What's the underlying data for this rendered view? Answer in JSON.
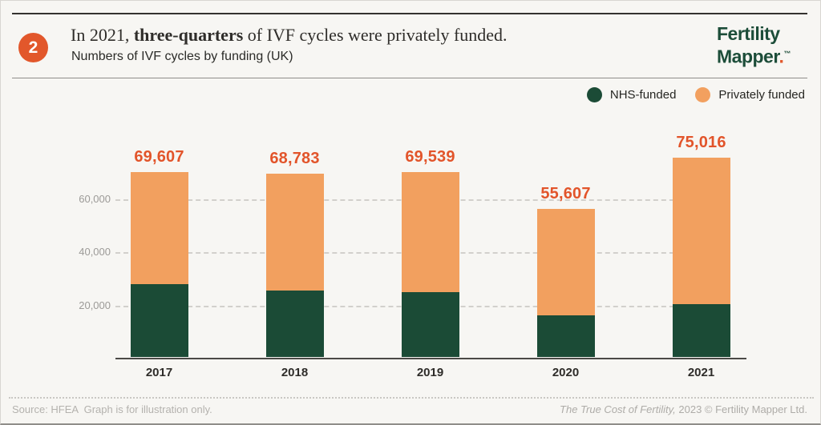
{
  "page": {
    "badge": "2",
    "title_prefix": "In 2021, ",
    "title_bold": "three-quarters",
    "title_suffix": " of IVF cycles were privately funded.",
    "subtitle": "Numbers of IVF cycles by funding (UK)",
    "logo_line1": "Fertility",
    "logo_line2": "Mapper",
    "logo_dot": ".",
    "logo_tm": "™"
  },
  "colors": {
    "accent_orange": "#E2572B",
    "bar_orange": "#F2A05F",
    "bar_green": "#1B4B36",
    "value_label_orange": "#E2542A",
    "logo_green": "#1C4D39",
    "background": "#f7f6f3"
  },
  "legend": [
    {
      "label": "NHS-funded",
      "color": "#1B4B36"
    },
    {
      "label": "Privately funded",
      "color": "#F2A05F"
    }
  ],
  "chart_data": {
    "type": "bar",
    "stacked": true,
    "title": "Numbers of IVF cycles by funding (UK)",
    "categories": [
      "2017",
      "2018",
      "2019",
      "2020",
      "2021"
    ],
    "series": [
      {
        "name": "NHS-funded",
        "color": "#1B4B36",
        "values": [
          27500,
          25000,
          24400,
          15700,
          20000
        ]
      },
      {
        "name": "Privately funded",
        "color": "#F2A05F",
        "values": [
          42107,
          43783,
          45139,
          39907,
          55016
        ]
      }
    ],
    "totals": [
      69607,
      68783,
      69539,
      55607,
      75016
    ],
    "total_labels": [
      "69,607",
      "68,783",
      "69,539",
      "55,607",
      "75,016"
    ],
    "yticks": [
      20000,
      40000,
      60000
    ],
    "ytick_labels": [
      "20,000",
      "40,000",
      "60,000"
    ],
    "ylim": [
      0,
      80000
    ],
    "grid": "dashed-horizontal",
    "legend_position": "top-right"
  },
  "footer": {
    "source": "Source: HFEA  Graph is for illustration only.",
    "credit_italic": "The True Cost of Fertility,",
    "credit_rest": " 2023 © Fertility Mapper Ltd."
  }
}
